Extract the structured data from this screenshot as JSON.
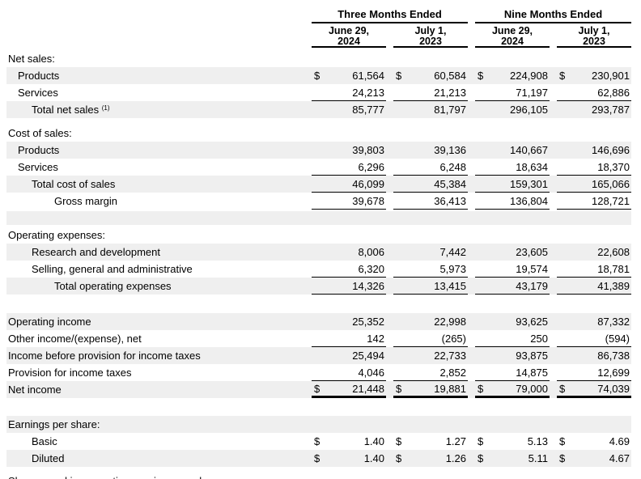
{
  "style": {
    "stripe_color": "#efefef",
    "rule_color": "#000000",
    "text_color": "#000000"
  },
  "table": {
    "currency_symbol": "$",
    "period_headers": [
      "Three Months Ended",
      "Nine Months Ended"
    ],
    "column_headers": [
      {
        "line1": "June 29,",
        "line2": "2024"
      },
      {
        "line1": "July 1,",
        "line2": "2023"
      },
      {
        "line1": "June 29,",
        "line2": "2024"
      },
      {
        "line1": "July 1,",
        "line2": "2023"
      }
    ],
    "rows": [
      {
        "name": "net-sales-section",
        "label": "Net sales:",
        "indent": 0,
        "shaded": false
      },
      {
        "name": "net-sales-products",
        "label": "Products",
        "indent": 1,
        "shaded": true,
        "dollar": true,
        "values": [
          "61,564",
          "60,584",
          "224,908",
          "230,901"
        ]
      },
      {
        "name": "net-sales-services",
        "label": "Services",
        "indent": 1,
        "shaded": false,
        "values": [
          "24,213",
          "21,213",
          "71,197",
          "62,886"
        ],
        "rule": "single"
      },
      {
        "name": "total-net-sales",
        "label": "Total net sales",
        "footnote": "(1)",
        "indent": 2,
        "shaded": true,
        "values": [
          "85,777",
          "81,797",
          "296,105",
          "293,787"
        ]
      },
      {
        "spacer": 8,
        "shaded": false
      },
      {
        "name": "cost-of-sales-section",
        "label": "Cost of sales:",
        "indent": 0,
        "shaded": false
      },
      {
        "name": "cost-of-sales-products",
        "label": "Products",
        "indent": 1,
        "shaded": true,
        "values": [
          "39,803",
          "39,136",
          "140,667",
          "146,696"
        ]
      },
      {
        "name": "cost-of-sales-services",
        "label": "Services",
        "indent": 1,
        "shaded": false,
        "values": [
          "6,296",
          "6,248",
          "18,634",
          "18,370"
        ],
        "rule": "single"
      },
      {
        "name": "total-cost-of-sales",
        "label": "Total cost of sales",
        "indent": 2,
        "shaded": true,
        "values": [
          "46,099",
          "45,384",
          "159,301",
          "165,066"
        ],
        "rule": "single"
      },
      {
        "name": "gross-margin",
        "label": "Gross margin",
        "indent": 3,
        "shaded": false,
        "values": [
          "39,678",
          "36,413",
          "136,804",
          "128,721"
        ],
        "rule": "single"
      },
      {
        "spacer": 2,
        "shaded": false
      },
      {
        "spacer": 17,
        "shaded": true
      },
      {
        "spacer": 2,
        "shaded": false
      },
      {
        "name": "operating-expenses-section",
        "label": "Operating expenses:",
        "indent": 0,
        "shaded": false
      },
      {
        "name": "research-and-development",
        "label": "Research and development",
        "indent": 2,
        "shaded": true,
        "values": [
          "8,006",
          "7,442",
          "23,605",
          "22,608"
        ]
      },
      {
        "name": "selling-general-administrative",
        "label": "Selling, general and administrative",
        "indent": 2,
        "shaded": false,
        "values": [
          "6,320",
          "5,973",
          "19,574",
          "18,781"
        ],
        "rule": "single"
      },
      {
        "name": "total-operating-expenses",
        "label": "Total operating expenses",
        "indent": 3,
        "shaded": true,
        "values": [
          "14,326",
          "13,415",
          "43,179",
          "41,389"
        ],
        "rule": "single"
      },
      {
        "spacer": 23,
        "shaded": false
      },
      {
        "name": "operating-income",
        "label": "Operating income",
        "indent": 0,
        "shaded": true,
        "values": [
          "25,352",
          "22,998",
          "93,625",
          "87,332"
        ]
      },
      {
        "name": "other-income-expense-net",
        "label": "Other income/(expense), net",
        "indent": 0,
        "shaded": false,
        "values": [
          "142",
          "(265)",
          "250",
          "(594)"
        ],
        "rule": "single"
      },
      {
        "name": "income-before-provision-for-income-taxes",
        "label": "Income before provision for income taxes",
        "indent": 0,
        "shaded": true,
        "values": [
          "25,494",
          "22,733",
          "93,875",
          "86,738"
        ]
      },
      {
        "name": "provision-for-income-taxes",
        "label": "Provision for income taxes",
        "indent": 0,
        "shaded": false,
        "values": [
          "4,046",
          "2,852",
          "14,875",
          "12,699"
        ],
        "rule": "single"
      },
      {
        "name": "net-income",
        "label": "Net income",
        "indent": 0,
        "shaded": true,
        "dollar": true,
        "values": [
          "21,448",
          "19,881",
          "79,000",
          "74,039"
        ],
        "rule": "thick"
      },
      {
        "spacer": 22,
        "shaded": false
      },
      {
        "name": "earnings-per-share-section",
        "label": "Earnings per share:",
        "indent": 0,
        "shaded": true
      },
      {
        "name": "eps-basic",
        "label": "Basic",
        "indent": 2,
        "shaded": false,
        "dollar": true,
        "values": [
          "1.40",
          "1.27",
          "5.13",
          "4.69"
        ]
      },
      {
        "name": "eps-diluted",
        "label": "Diluted",
        "indent": 2,
        "shaded": true,
        "dollar": true,
        "values": [
          "1.40",
          "1.26",
          "5.11",
          "4.67"
        ]
      },
      {
        "spacer": 3,
        "shaded": false
      },
      {
        "name": "shares-used-section",
        "label": "Shares used in computing earnings per share:",
        "indent": 0,
        "shaded": false,
        "clipped": true
      }
    ]
  }
}
